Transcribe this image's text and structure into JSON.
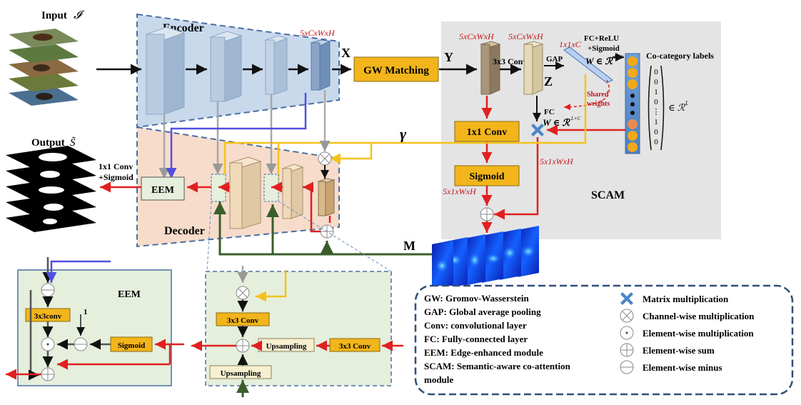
{
  "labels": {
    "input": "Input",
    "input_sym": "𝓘",
    "output": "Output",
    "output_sym": "S̃",
    "encoder": "Encoder",
    "decoder": "Decoder",
    "x": "X",
    "y": "Y",
    "z": "Z",
    "m": "M",
    "gamma": "γ",
    "gw_matching": "GW Matching",
    "conv3x3": "3x3 Conv",
    "gap": "GAP",
    "fc_relu_1": "FC+ReLU",
    "fc_relu_2": "+Sigmoid",
    "w_lc_1": "W ∈ ℛ",
    "sup_lc": "L×C",
    "fc": "FC",
    "shared_1": "Shared",
    "shared_2": "weights",
    "conv1x1": "1x1 Conv",
    "sigmoid": "Sigmoid",
    "scam": "SCAM",
    "cocat": "Co-category labels",
    "in_rl": "∈ ℛ",
    "sup_l": "L",
    "eem": "EEM",
    "conv1x1_sig_1": "1x1 Conv",
    "conv1x1_sig_2": "+Sigmoid",
    "dim_5cwh_enc": "5xCxWxH",
    "dim_5cwh_a": "5xCxWxH",
    "dim_5cwh_b": "5xCxWxH",
    "dim_11c": "1x1xC",
    "dim_51wh_a": "5x1xWxH",
    "dim_51wh_b": "5x1xWxH",
    "eem_title": "EEM",
    "eem_3x3conv": "3x3conv",
    "eem_sigmoid": "Sigmoid",
    "eem_one": "1",
    "dec_3x3_a": "3x3 Conv",
    "dec_3x3_b": "3x3 Conv",
    "dec_up_a": "Upsampling",
    "dec_up_b": "Upsampling"
  },
  "label_vector": [
    "0",
    "0",
    "1",
    "0",
    "⋮",
    "1",
    "0",
    "0"
  ],
  "legend": {
    "left": [
      "GW: Gromov-Wasserstein",
      "GAP: Global average pooling",
      "Conv: convolutional layer",
      "FC: Fully-connected layer",
      "EEM: Edge-enhanced module",
      "SCAM: Semantic-aware co-attention",
      "module"
    ],
    "right": [
      {
        "icon": "matrix-multiplication-icon",
        "label": "Matrix multiplication"
      },
      {
        "icon": "channel-wise-multiplication-icon",
        "label": "Channel-wise multiplication"
      },
      {
        "icon": "element-wise-multiplication-icon",
        "label": "Element-wise multiplication"
      },
      {
        "icon": "element-wise-sum-icon",
        "label": "Element-wise sum"
      },
      {
        "icon": "element-wise-minus-icon",
        "label": "Element-wise minus"
      }
    ]
  },
  "colors": {
    "red": "#e02020",
    "blue": "#5050e0",
    "yellow": "#f5c21b",
    "green": "#3a5e2a",
    "gray": "#a8a8a8",
    "gold": "#f2b51b",
    "encoder_bg": "#c9d9ec",
    "decoder_bg": "#f7dccb",
    "scam_bg": "#e4e4e4",
    "eem_bg": "#e5efdc"
  }
}
